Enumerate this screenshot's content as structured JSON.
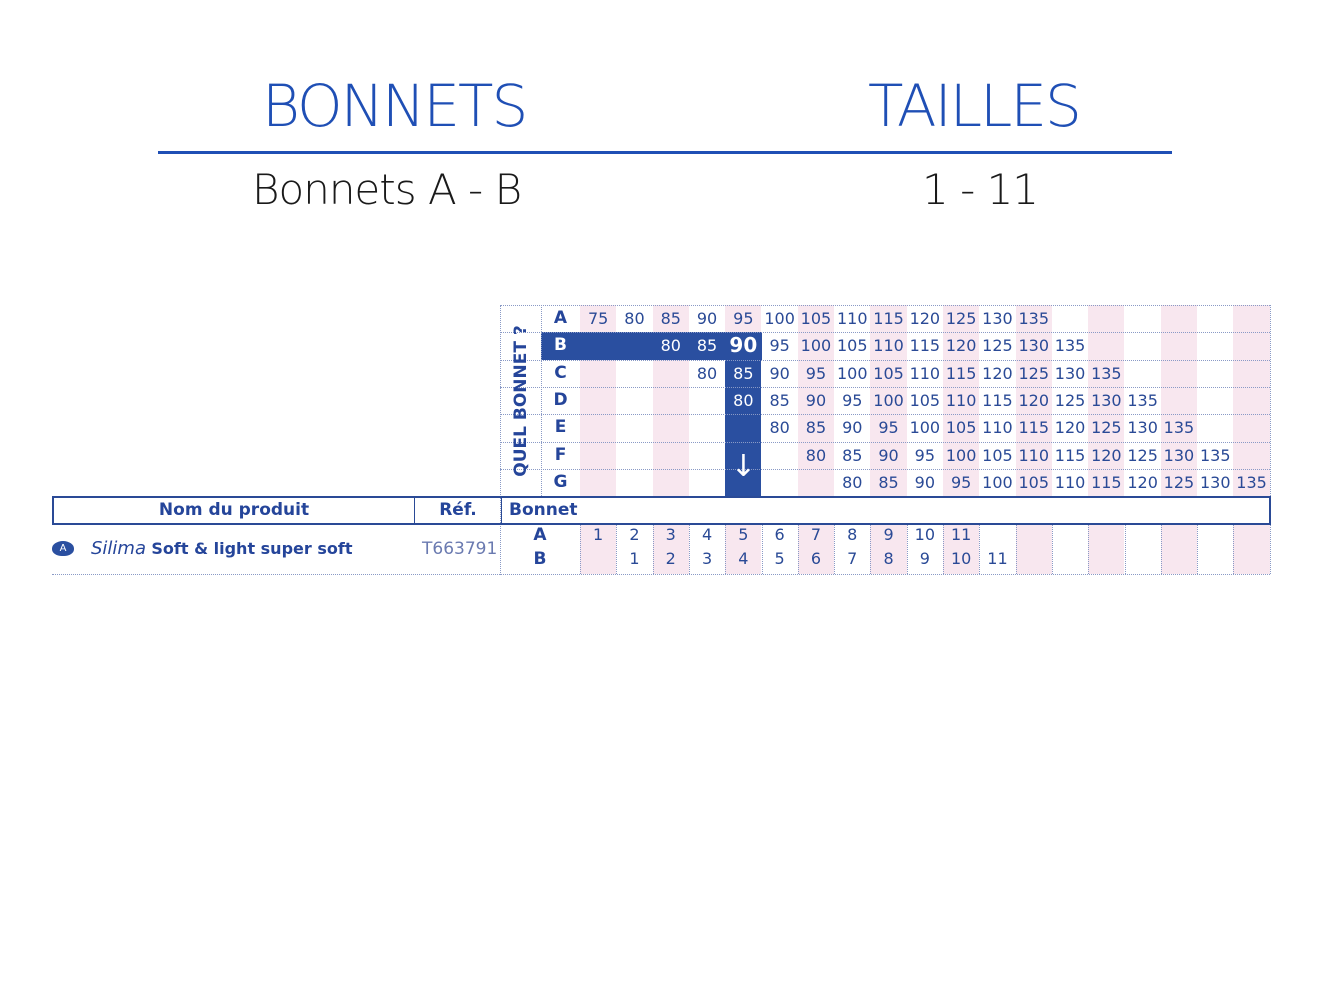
{
  "header": {
    "left_title": "BONNETS",
    "right_title": "TAILLES",
    "left_value": "Bonnets A - B",
    "right_value": "1 - 11"
  },
  "colors": {
    "brand_blue": "#1f4fb5",
    "table_blue": "#2a4fa0",
    "pink": "#f8e7ef"
  },
  "chart_question": "QUEL BONNET ?",
  "highlight": {
    "cup": "B",
    "value": "90",
    "icon": "arrow-down-icon"
  },
  "conversion_rows": [
    {
      "cup": "A",
      "values": [
        "75",
        "80",
        "85",
        "90",
        "95",
        "100",
        "105",
        "110",
        "115",
        "120",
        "125",
        "130",
        "135",
        null,
        null,
        null,
        null,
        null,
        null
      ]
    },
    {
      "cup": "B",
      "values": [
        null,
        null,
        "80",
        "85",
        "90",
        "95",
        "100",
        "105",
        "110",
        "115",
        "120",
        "125",
        "130",
        "135",
        null,
        null,
        null,
        null,
        null
      ]
    },
    {
      "cup": "C",
      "values": [
        null,
        null,
        null,
        "80",
        "85",
        "90",
        "95",
        "100",
        "105",
        "110",
        "115",
        "120",
        "125",
        "130",
        "135",
        null,
        null,
        null,
        null
      ]
    },
    {
      "cup": "D",
      "values": [
        null,
        null,
        null,
        null,
        "80",
        "85",
        "90",
        "95",
        "100",
        "105",
        "110",
        "115",
        "120",
        "125",
        "130",
        "135",
        null,
        null,
        null
      ]
    },
    {
      "cup": "E",
      "values": [
        null,
        null,
        null,
        null,
        null,
        "80",
        "85",
        "90",
        "95",
        "100",
        "105",
        "110",
        "115",
        "120",
        "125",
        "130",
        "135",
        null,
        null
      ]
    },
    {
      "cup": "F",
      "values": [
        null,
        null,
        null,
        null,
        null,
        null,
        "80",
        "85",
        "90",
        "95",
        "100",
        "105",
        "110",
        "115",
        "120",
        "125",
        "130",
        "135",
        null
      ]
    },
    {
      "cup": "G",
      "values": [
        null,
        null,
        null,
        null,
        null,
        null,
        null,
        "80",
        "85",
        "90",
        "95",
        "100",
        "105",
        "110",
        "115",
        "120",
        "125",
        "130",
        "135"
      ]
    }
  ],
  "table": {
    "col_product": "Nom du produit",
    "col_ref": "Réf.",
    "col_cup": "Bonnet",
    "product": {
      "badge": "A",
      "brand": "Silima",
      "name": "Soft & light super soft",
      "ref": "T663791",
      "sizes": [
        {
          "cup": "A",
          "values": [
            "1",
            "2",
            "3",
            "4",
            "5",
            "6",
            "7",
            "8",
            "9",
            "10",
            "11",
            null,
            null,
            null,
            null,
            null,
            null,
            null,
            null
          ]
        },
        {
          "cup": "B",
          "values": [
            null,
            "1",
            "2",
            "3",
            "4",
            "5",
            "6",
            "7",
            "8",
            "9",
            "10",
            "11",
            null,
            null,
            null,
            null,
            null,
            null,
            null
          ]
        }
      ]
    }
  }
}
